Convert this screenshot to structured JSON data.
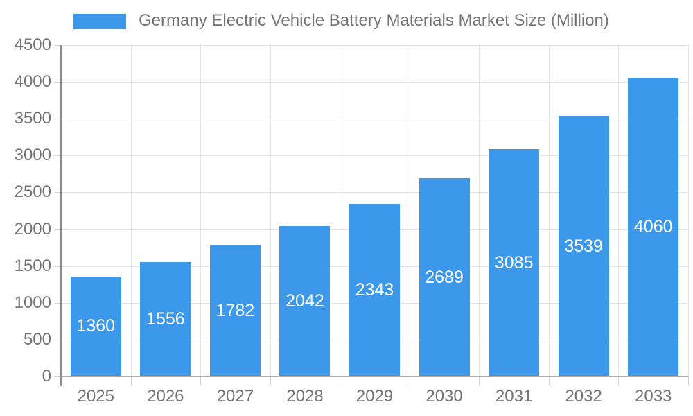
{
  "legend": {
    "series_label": "Germany Electric Vehicle Battery Materials Market Size (Million)"
  },
  "colors": {
    "bar": "#3B98EB",
    "axis_text": "#757575",
    "grid_line": "#E4E4E4",
    "axis_line": "#8C8C8C",
    "baseline": "#ACACAC",
    "tick": "#D4D4D4",
    "value_label": "#FFFFFF",
    "background": "#FFFFFF"
  },
  "chart_data": {
    "type": "bar",
    "title": "Germany Electric Vehicle Battery Materials Market Size (Million)",
    "categories": [
      "2025",
      "2026",
      "2027",
      "2028",
      "2029",
      "2030",
      "2031",
      "2032",
      "2033"
    ],
    "values": [
      1360,
      1556,
      1782,
      2042,
      2343,
      2689,
      3085,
      3539,
      4060
    ],
    "xlabel": "",
    "ylabel": "",
    "ylim": [
      0,
      4500
    ],
    "ytick_step": 500,
    "yticks": [
      0,
      500,
      1000,
      1500,
      2000,
      2500,
      3000,
      3500,
      4000,
      4500
    ],
    "grid": true,
    "legend_position": "top-left",
    "value_label_position": "inside-center"
  }
}
